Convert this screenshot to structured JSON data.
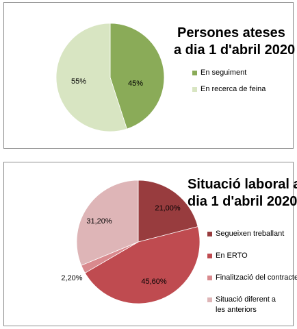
{
  "chart_data": [
    {
      "type": "pie",
      "title": [
        "Persones ateses",
        "a dia 1 d'abril 2020"
      ],
      "slices": [
        {
          "label": "En seguiment",
          "value": 45,
          "display": "45%",
          "color": "#8aab58"
        },
        {
          "label": "En recerca de feina",
          "value": 55,
          "display": "55%",
          "color": "#d8e5c2"
        }
      ],
      "legend_position": "right"
    },
    {
      "type": "pie",
      "title": [
        "Situació laboral a",
        "dia 1 d'abril 2020"
      ],
      "slices": [
        {
          "label": "Segueixen treballant",
          "value": 21.0,
          "display": "21,00%",
          "color": "#983c3e"
        },
        {
          "label": "En ERTO",
          "value": 45.6,
          "display": "45,60%",
          "color": "#bf4b50"
        },
        {
          "label": "Finalització del contracte",
          "value": 2.2,
          "display": "2,20%",
          "color": "#d98a8e"
        },
        {
          "label": "Situació diferent a les anteriors",
          "value": 31.2,
          "display": "31,20%",
          "color": "#deb5b7"
        }
      ],
      "legend_position": "right"
    }
  ]
}
